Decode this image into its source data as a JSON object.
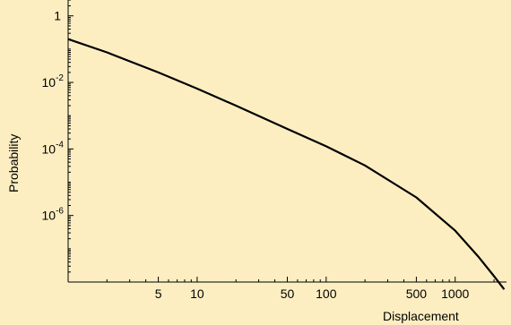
{
  "chart_data": {
    "type": "line",
    "title": "",
    "xlabel": "Displacement",
    "ylabel": "Probability",
    "x_scale": "log",
    "y_scale": "log",
    "xlim": [
      1,
      2500
    ],
    "ylim": [
      1e-08,
      3
    ],
    "x_ticks": [
      {
        "value": 5,
        "label": "5"
      },
      {
        "value": 10,
        "label": "10"
      },
      {
        "value": 50,
        "label": "50"
      },
      {
        "value": 100,
        "label": "100"
      },
      {
        "value": 500,
        "label": "500"
      },
      {
        "value": 1000,
        "label": "1000"
      }
    ],
    "y_ticks": [
      {
        "value": 1,
        "base": "1",
        "exp": ""
      },
      {
        "value": 0.01,
        "base": "10",
        "exp": "-2"
      },
      {
        "value": 0.0001,
        "base": "10",
        "exp": "-4"
      },
      {
        "value": 1e-06,
        "base": "10",
        "exp": "-6"
      }
    ],
    "grid": false,
    "series": [
      {
        "color": "#000000",
        "x": [
          1,
          2,
          5,
          10,
          20,
          50,
          100,
          200,
          500,
          1000,
          1500,
          2000,
          2400
        ],
        "y": [
          0.2,
          0.08,
          0.02,
          0.0065,
          0.002,
          0.0004,
          0.00012,
          3.2e-05,
          3.5e-06,
          3.5e-07,
          6e-08,
          1.5e-08,
          6e-09
        ]
      }
    ]
  }
}
